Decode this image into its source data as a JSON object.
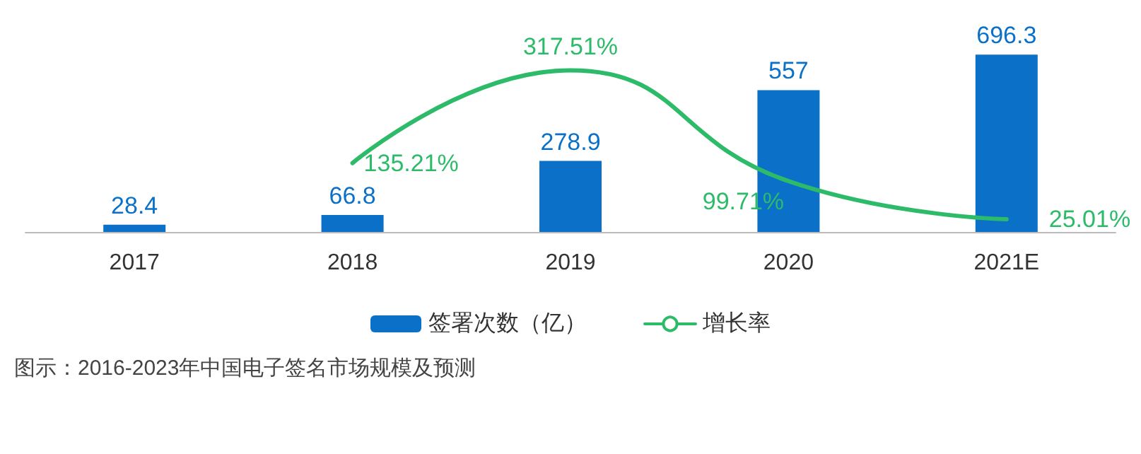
{
  "chart_data": {
    "type": "bar",
    "categories": [
      "2017",
      "2018",
      "2019",
      "2020",
      "2021E"
    ],
    "series": [
      {
        "name": "签署次数（亿）",
        "color": "#0b70c8",
        "values": [
          28.4,
          66.8,
          278.9,
          557,
          696.3
        ]
      },
      {
        "name": "增长率",
        "type": "line",
        "axis": "y2",
        "color": "#2dbb6a",
        "values": [
          null,
          135.21,
          317.51,
          99.71,
          25.01
        ],
        "value_labels": [
          null,
          "135.21%",
          "317.51%",
          "99.71%",
          "25.01%"
        ]
      }
    ],
    "data_labels": true,
    "grid": false,
    "legend": "bottom",
    "annotations": [
      "图示：2016-2023年中国电子签名市场规模及预测"
    ]
  }
}
